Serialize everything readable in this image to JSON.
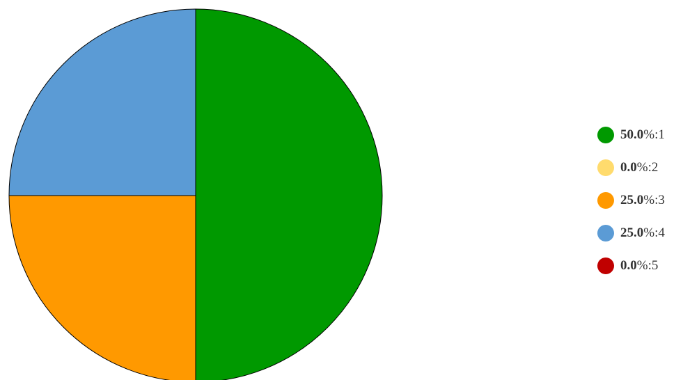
{
  "chart_data": {
    "type": "pie",
    "title": "",
    "legend_position": "right",
    "slices": [
      {
        "label": "1",
        "value": 50.0,
        "percent_text": "50.0",
        "color": "#009900"
      },
      {
        "label": "2",
        "value": 0.0,
        "percent_text": "0.0",
        "color": "#ffdb6d"
      },
      {
        "label": "3",
        "value": 25.0,
        "percent_text": "25.0",
        "color": "#ff9900"
      },
      {
        "label": "4",
        "value": 25.0,
        "percent_text": "25.0",
        "color": "#5b9bd5"
      },
      {
        "label": "5",
        "value": 0.0,
        "percent_text": "0.0",
        "color": "#c00000"
      }
    ]
  }
}
